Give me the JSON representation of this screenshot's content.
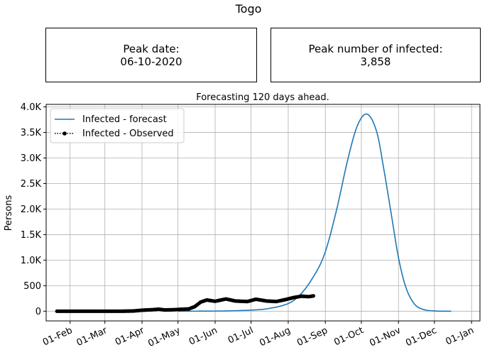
{
  "page_title": "Togo",
  "summary_boxes": [
    {
      "label": "Peak date:",
      "value": "06-10-2020"
    },
    {
      "label": "Peak number of infected:",
      "value": "3,858"
    }
  ],
  "chart_data": {
    "type": "line",
    "title": "Forecasting 120 days ahead.",
    "xlabel": "",
    "ylabel": "Persons",
    "x_ticks": [
      "01-Feb",
      "01-Mar",
      "01-Apr",
      "01-May",
      "01-Jun",
      "01-Jul",
      "01-Aug",
      "01-Sep",
      "01-Oct",
      "01-Nov",
      "01-Dec",
      "01-Jan"
    ],
    "y_ticks": [
      "0",
      "500",
      "1.0K",
      "1.5K",
      "2.0K",
      "2.5K",
      "3.0K",
      "3.5K",
      "4.0K"
    ],
    "ylim": [
      -190,
      4050
    ],
    "xlim": [
      "2020-01-12",
      "2021-01-08"
    ],
    "grid": true,
    "legend_position": "top-left",
    "series": [
      {
        "name": "Infected - forecast",
        "color": "#1f77b4",
        "style": "solid",
        "points": [
          [
            "2020-05-01",
            0
          ],
          [
            "2020-06-01",
            3
          ],
          [
            "2020-06-15",
            8
          ],
          [
            "2020-07-01",
            22
          ],
          [
            "2020-07-15",
            50
          ],
          [
            "2020-08-01",
            150
          ],
          [
            "2020-08-10",
            300
          ],
          [
            "2020-08-20",
            600
          ],
          [
            "2020-08-31",
            1100
          ],
          [
            "2020-09-10",
            1950
          ],
          [
            "2020-09-20",
            3000
          ],
          [
            "2020-09-28",
            3650
          ],
          [
            "2020-10-06",
            3858
          ],
          [
            "2020-10-14",
            3500
          ],
          [
            "2020-10-20",
            2750
          ],
          [
            "2020-10-26",
            1900
          ],
          [
            "2020-11-01",
            1050
          ],
          [
            "2020-11-07",
            480
          ],
          [
            "2020-11-14",
            150
          ],
          [
            "2020-11-21",
            40
          ],
          [
            "2020-12-01",
            5
          ],
          [
            "2020-12-15",
            0
          ]
        ]
      },
      {
        "name": "Infected - Observed",
        "color": "#000000",
        "style": "dotted-marker",
        "points": [
          [
            "2020-01-21",
            0
          ],
          [
            "2020-02-01",
            0
          ],
          [
            "2020-02-15",
            0
          ],
          [
            "2020-03-01",
            0
          ],
          [
            "2020-03-15",
            0
          ],
          [
            "2020-03-25",
            5
          ],
          [
            "2020-04-01",
            20
          ],
          [
            "2020-04-10",
            30
          ],
          [
            "2020-04-15",
            40
          ],
          [
            "2020-04-20",
            25
          ],
          [
            "2020-04-28",
            30
          ],
          [
            "2020-05-01",
            35
          ],
          [
            "2020-05-10",
            45
          ],
          [
            "2020-05-15",
            90
          ],
          [
            "2020-05-20",
            180
          ],
          [
            "2020-05-25",
            220
          ],
          [
            "2020-06-01",
            195
          ],
          [
            "2020-06-10",
            240
          ],
          [
            "2020-06-18",
            200
          ],
          [
            "2020-06-28",
            190
          ],
          [
            "2020-07-05",
            235
          ],
          [
            "2020-07-14",
            200
          ],
          [
            "2020-07-22",
            190
          ],
          [
            "2020-07-30",
            230
          ],
          [
            "2020-08-05",
            265
          ],
          [
            "2020-08-12",
            295
          ],
          [
            "2020-08-18",
            285
          ],
          [
            "2020-08-22",
            300
          ]
        ]
      }
    ]
  }
}
